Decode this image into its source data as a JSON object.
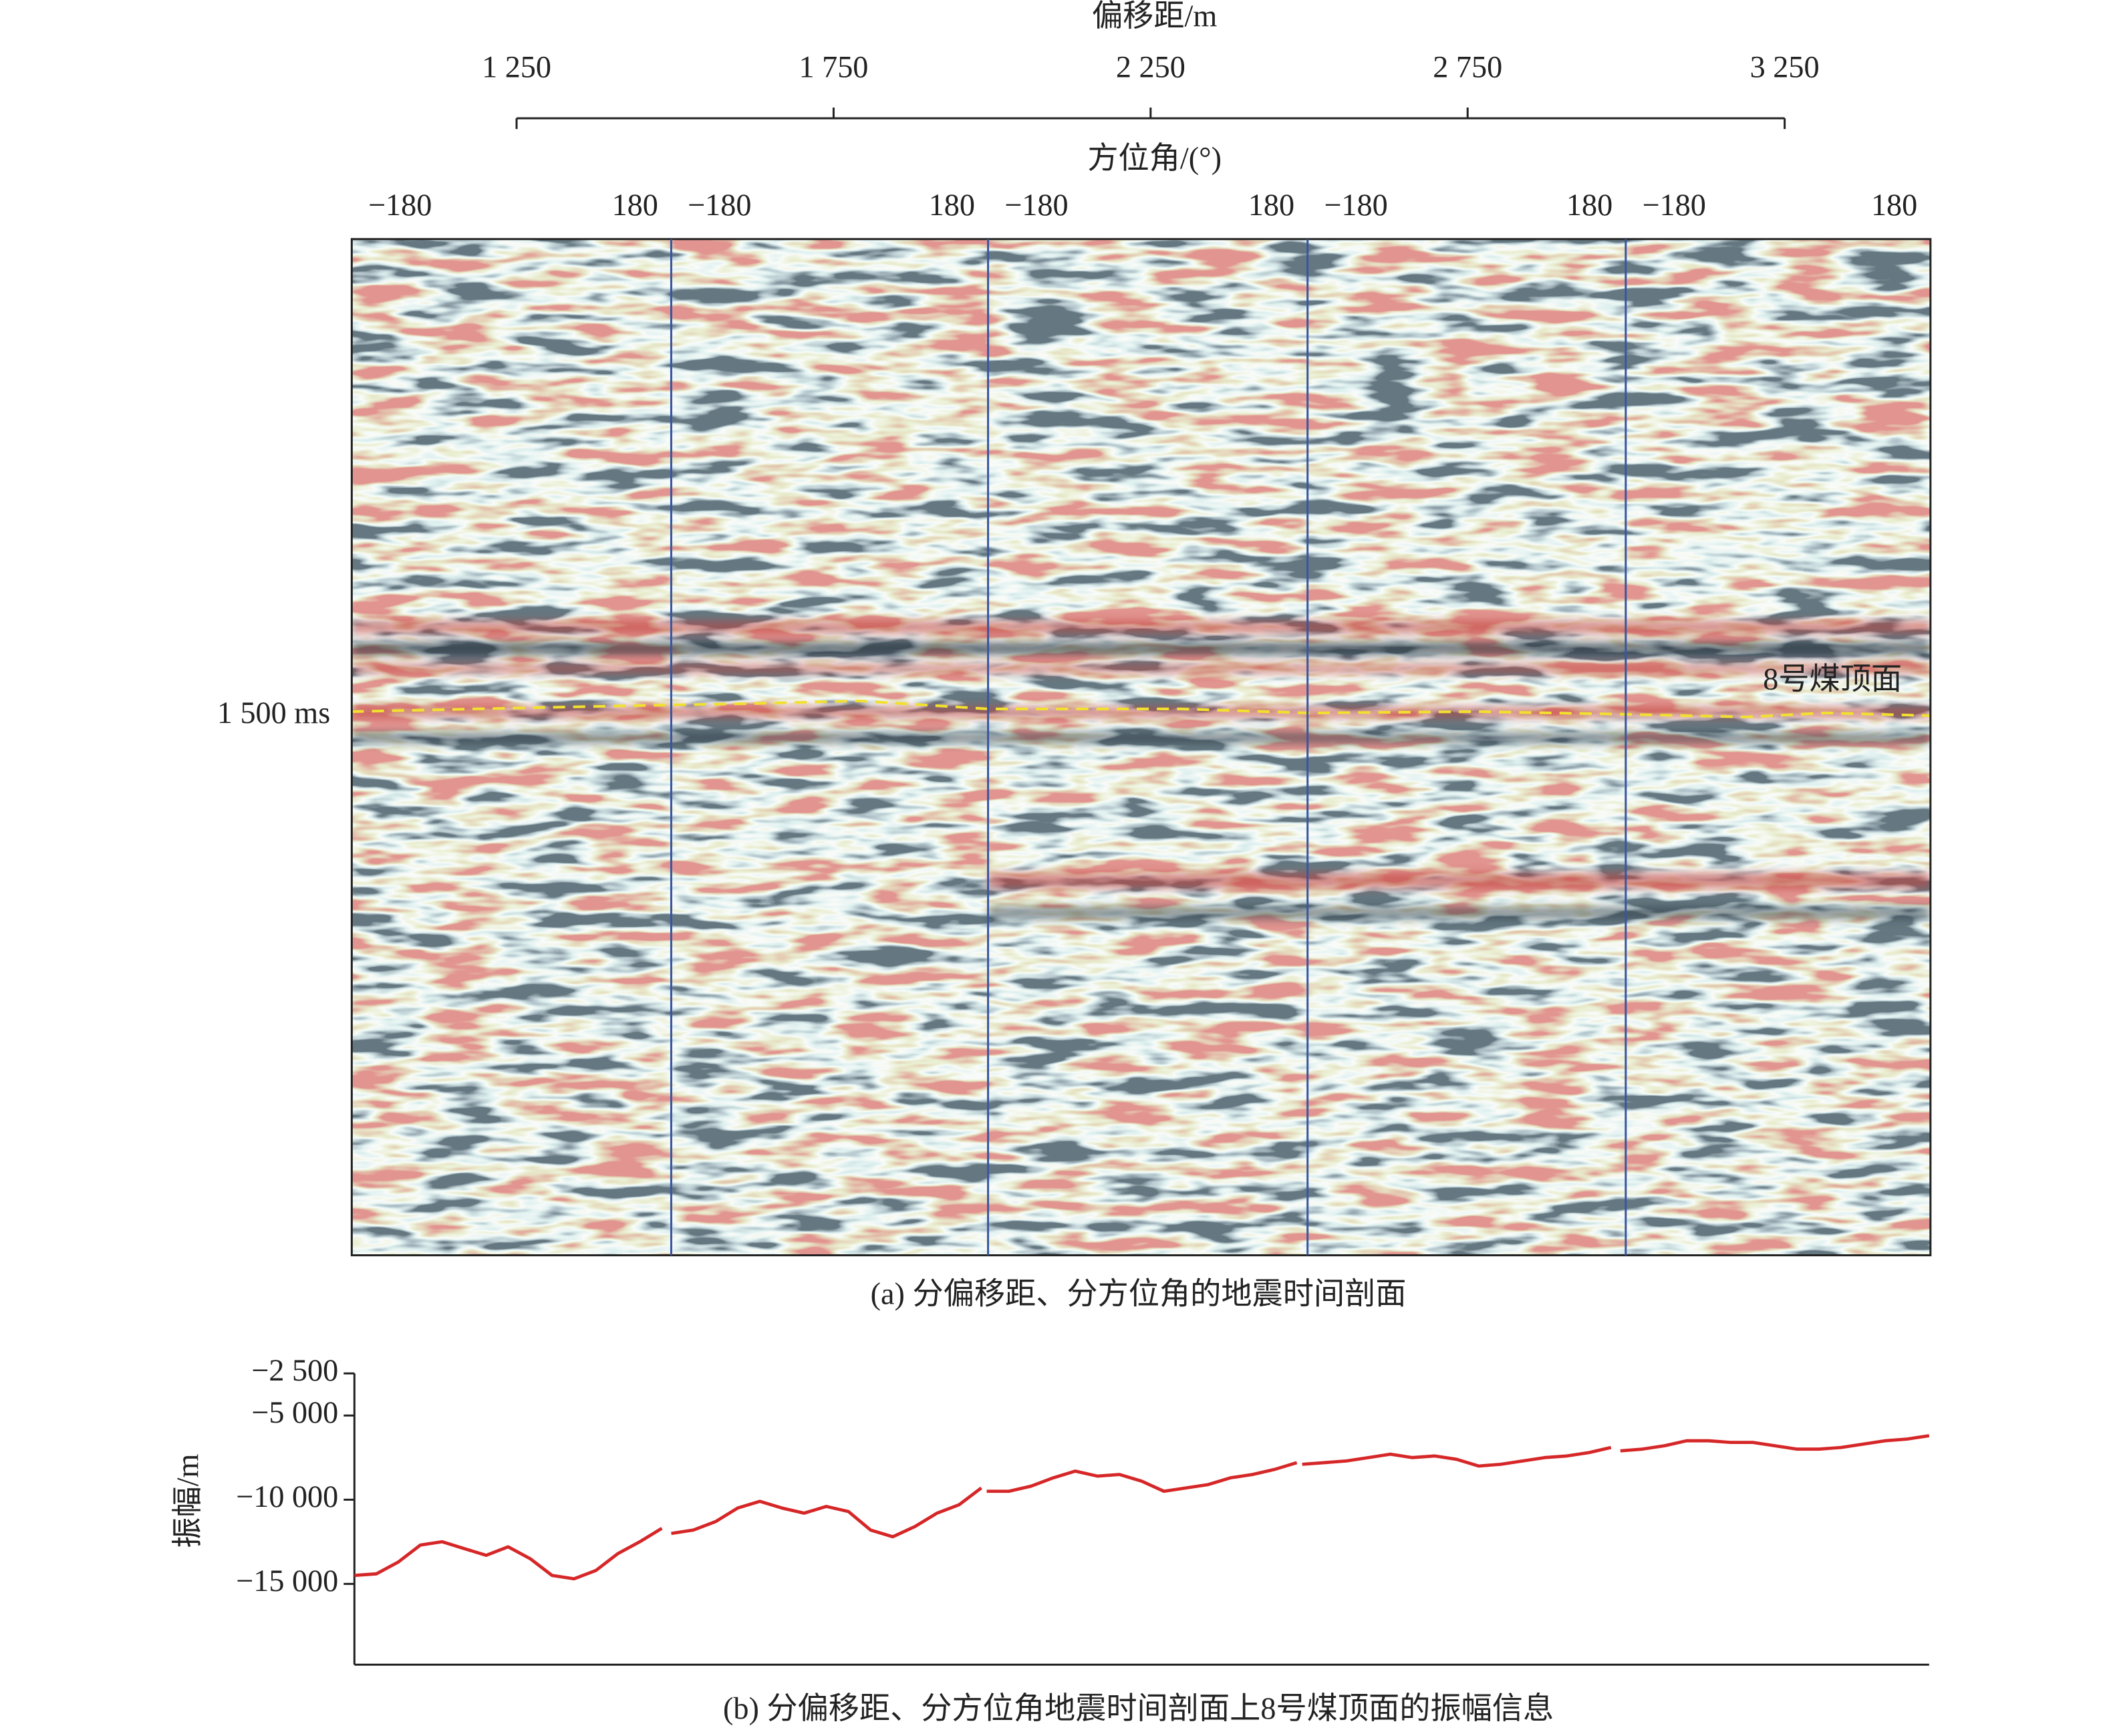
{
  "chart_data": [
    {
      "type": "seismic-section",
      "title": "(a) 分偏移距、分方位角的地震时间剖面",
      "xlabel": "偏移距/m",
      "xlim": [
        990,
        3480
      ],
      "xticks": [
        {
          "value": 1250,
          "label": "1 250"
        },
        {
          "value": 1750,
          "label": "1 750"
        },
        {
          "value": 2250,
          "label": "2 250"
        },
        {
          "value": 2750,
          "label": "2 750"
        },
        {
          "value": 3250,
          "label": "3 250"
        }
      ],
      "azimuth_label": "方位角/(°)",
      "azimuth_ticks": [
        {
          "value": -180,
          "label": "−180"
        },
        180
      ],
      "ylim": [
        1681,
        1340
      ],
      "yticks": [
        {
          "value": 1500,
          "label": "1 500 ms"
        }
      ],
      "annotation": "8号煤顶面"
    },
    {
      "type": "line",
      "title": "(b) 分偏移距、分方位角地震时间剖面上8号煤顶面的振幅信息",
      "ylabel": "振幅/m",
      "ylim": [
        -19800,
        -2500
      ],
      "yticks": [
        {
          "value": -2500,
          "label": "−2 500"
        },
        {
          "value": -5000,
          "label": "−5 000"
        },
        {
          "value": -10000,
          "label": "−10 000"
        },
        {
          "value": -15000,
          "label": "−15 000"
        }
      ],
      "series": [
        {
          "color": "#d62728",
          "values": [
            -14500,
            -14400,
            -13700,
            -12700,
            -12500,
            -12900,
            -13300,
            -12800,
            -13500,
            -14500,
            -14700,
            -14200,
            -13200,
            -12500,
            -11700
          ]
        },
        {
          "color": "#d62728",
          "values": [
            -12000,
            -11800,
            -11300,
            -10500,
            -10100,
            -10500,
            -10800,
            -10400,
            -10700,
            -11800,
            -12200,
            -11600,
            -10800,
            -10300,
            -9300
          ]
        },
        {
          "color": "#d62728",
          "values": [
            -9500,
            -9500,
            -9200,
            -8700,
            -8300,
            -8600,
            -8500,
            -8900,
            -9500,
            -9300,
            -9100,
            -8700,
            -8500,
            -8200,
            -7800
          ]
        },
        {
          "color": "#d62728",
          "values": [
            -7900,
            -7800,
            -7700,
            -7500,
            -7300,
            -7500,
            -7400,
            -7600,
            -8000,
            -7900,
            -7700,
            -7500,
            -7400,
            -7200,
            -6900
          ]
        },
        {
          "color": "#d62728",
          "values": [
            -7100,
            -7000,
            -6800,
            -6500,
            -6500,
            -6600,
            -6600,
            -6800,
            -7000,
            -7000,
            -6900,
            -6700,
            -6500,
            -6400,
            -6200
          ]
        }
      ]
    }
  ]
}
